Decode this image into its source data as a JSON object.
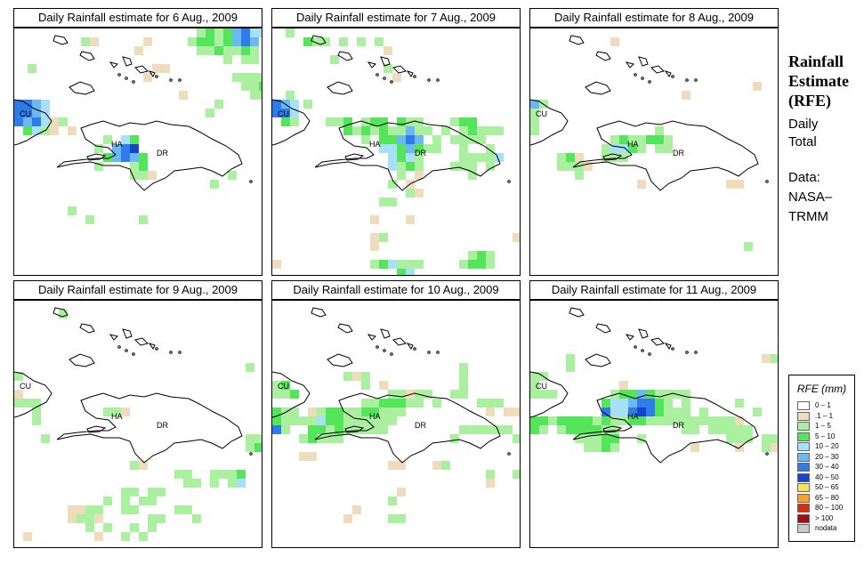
{
  "side_panel": {
    "title_lines": [
      "Rainfall",
      "Estimate",
      "(RFE)"
    ],
    "daily_lines": [
      "Daily",
      "Total"
    ],
    "data_lines": [
      "Data:",
      "NASA–",
      "TRMM"
    ]
  },
  "legend": {
    "title": "RFE (mm)",
    "items": [
      {
        "label": "0 – 1",
        "color": "#ffffff"
      },
      {
        "label": ".1 – 1",
        "color": "#eedcbc"
      },
      {
        "label": "1 – 5",
        "color": "#aaf0a0"
      },
      {
        "label": "5 – 10",
        "color": "#55e55a"
      },
      {
        "label": "10 – 20",
        "color": "#a8e0f8"
      },
      {
        "label": "20 – 30",
        "color": "#6cb8f2"
      },
      {
        "label": "30 – 40",
        "color": "#2f7ce8"
      },
      {
        "label": "40 – 50",
        "color": "#1744cc"
      },
      {
        "label": "50 – 65",
        "color": "#f8e060"
      },
      {
        "label": "65 – 80",
        "color": "#f8a030"
      },
      {
        "label": "80 – 100",
        "color": "#e02a10"
      },
      {
        "label": "> 100",
        "color": "#a01010"
      },
      {
        "label": "nodata",
        "color": "#c8c8c8"
      }
    ]
  },
  "map_labels": {
    "cuba": "CU",
    "haiti": "HA",
    "dominican_republic": "DR"
  },
  "panels": [
    {
      "title": "Daily Rainfall estimate for  6 Aug., 2009"
    },
    {
      "title": "Daily Rainfall estimate for  7 Aug., 2009"
    },
    {
      "title": "Daily Rainfall estimate for  8 Aug., 2009"
    },
    {
      "title": "Daily Rainfall estimate for  9 Aug., 2009"
    },
    {
      "title": "Daily Rainfall estimate for  10 Aug., 2009"
    },
    {
      "title": "Daily Rainfall estimate for  11 Aug., 2009"
    }
  ]
}
